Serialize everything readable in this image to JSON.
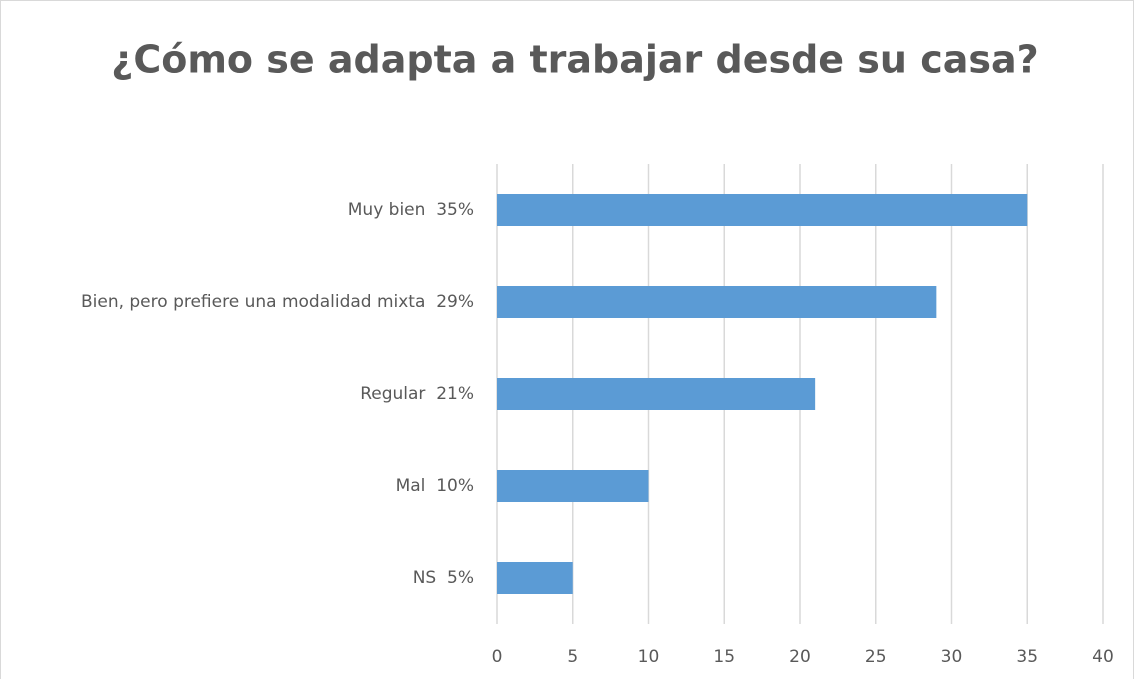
{
  "chart_data": {
    "type": "bar",
    "title": "¿Cómo se adapta a trabajar desde su casa?",
    "categories": [
      "Muy bien  35%",
      "Bien, pero prefiere una modalidad mixta  29%",
      "Regular  21%",
      "Mal  10%",
      "NS  5%"
    ],
    "values": [
      35,
      29,
      21,
      10,
      5
    ],
    "color": "#5b9bd5",
    "xlim": [
      0,
      40
    ],
    "xticks": [
      0,
      5,
      10,
      15,
      20,
      25,
      30,
      35,
      40
    ],
    "grid": true
  }
}
